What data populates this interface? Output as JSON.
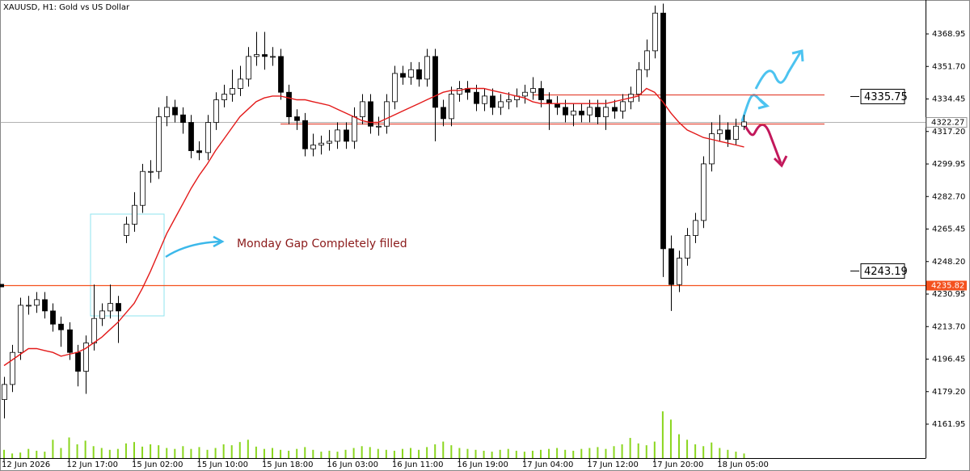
{
  "chart_data": {
    "type": "candlestick",
    "title": "XAUUSD, H1:  Gold vs US Dollar",
    "categories": [
      "12 Jun 2026",
      null,
      null,
      null,
      null,
      null,
      null,
      null,
      "12 Jun 17:00",
      null,
      null,
      null,
      null,
      null,
      null,
      null,
      "15 Jun 02:00",
      null,
      null,
      null,
      null,
      null,
      null,
      null,
      "15 Jun 10:00",
      null,
      null,
      null,
      null,
      null,
      null,
      null,
      "15 Jun 18:00",
      null,
      null,
      null,
      null,
      null,
      null,
      null,
      "16 Jun 03:00",
      null,
      null,
      null,
      null,
      null,
      null,
      null,
      "16 Jun 11:00",
      null,
      null,
      null,
      null,
      null,
      null,
      null,
      "16 Jun 19:00",
      null,
      null,
      null,
      null,
      null,
      null,
      null,
      "17 Jun 04:00",
      null,
      null,
      null,
      null,
      null,
      null,
      null,
      "17 Jun 12:00",
      null,
      null,
      null,
      null,
      null,
      null,
      null,
      "17 Jun 20:00",
      null,
      null,
      null,
      null,
      null,
      null,
      null,
      "18 Jun 05:00",
      null,
      null,
      null
    ],
    "open": [
      4175,
      4183,
      4200,
      4225,
      4225,
      4228,
      4222,
      4215,
      4212,
      4200,
      4190,
      4205,
      4218,
      4222,
      4226,
      4262,
      4268,
      4278,
      4296,
      4296,
      4325,
      4330,
      4326,
      4322,
      4307,
      4306,
      4322,
      4334,
      4337,
      4340,
      4345,
      4357,
      4358,
      4357,
      4357,
      4338,
      4325,
      4323,
      4308,
      4310,
      4311,
      4312,
      4318,
      4312,
      4325,
      4333,
      4320,
      4320,
      4333,
      4348,
      4346,
      4350,
      4345,
      4357,
      4330,
      4324,
      4337,
      4340,
      4338,
      4332,
      4336,
      4330,
      4333,
      4334,
      4336,
      4338,
      4340,
      4334,
      4332,
      4330,
      4326,
      4328,
      4326,
      4330,
      4325,
      4330,
      4328,
      4333,
      4337,
      4350,
      4360,
      4380,
      4255,
      4236,
      4250,
      4262,
      4270,
      4300,
      4316,
      4318,
      4313,
      4320
    ],
    "high": [
      4187,
      4204,
      4229,
      4230,
      4232,
      4232,
      4226,
      4219,
      4216,
      4204,
      4209,
      4236,
      4226,
      4236,
      4230,
      4272,
      4285,
      4300,
      4302,
      4330,
      4336,
      4334,
      4330,
      4326,
      4312,
      4326,
      4338,
      4342,
      4350,
      4352,
      4362,
      4370,
      4370,
      4362,
      4361,
      4342,
      4329,
      4327,
      4316,
      4315,
      4318,
      4322,
      4322,
      4330,
      4337,
      4337,
      4325,
      4337,
      4352,
      4352,
      4354,
      4354,
      4361,
      4361,
      4334,
      4341,
      4344,
      4344,
      4342,
      4340,
      4340,
      4337,
      4338,
      4340,
      4342,
      4346,
      4344,
      4338,
      4336,
      4334,
      4332,
      4332,
      4334,
      4334,
      4334,
      4334,
      4337,
      4341,
      4354,
      4366,
      4384,
      4385,
      4262,
      4254,
      4266,
      4274,
      4304,
      4322,
      4326,
      4322,
      4324,
      4326
    ],
    "low": [
      4165,
      4179,
      4196,
      4220,
      4221,
      4218,
      4211,
      4203,
      4196,
      4182,
      4178,
      4201,
      4214,
      4218,
      4205,
      4258,
      4264,
      4274,
      4290,
      4292,
      4320,
      4322,
      4316,
      4303,
      4302,
      4302,
      4318,
      4330,
      4333,
      4336,
      4341,
      4352,
      4350,
      4352,
      4334,
      4321,
      4318,
      4304,
      4304,
      4305,
      4307,
      4308,
      4308,
      4308,
      4321,
      4316,
      4315,
      4316,
      4329,
      4342,
      4342,
      4341,
      4341,
      4312,
      4320,
      4320,
      4333,
      4334,
      4328,
      4328,
      4326,
      4326,
      4329,
      4330,
      4332,
      4334,
      4330,
      4318,
      4326,
      4322,
      4320,
      4322,
      4322,
      4321,
      4318,
      4324,
      4324,
      4329,
      4333,
      4346,
      4356,
      4240,
      4222,
      4232,
      4246,
      4258,
      4266,
      4296,
      4312,
      4309,
      4310,
      4318
    ],
    "close": [
      4183,
      4200,
      4225,
      4225,
      4228,
      4222,
      4215,
      4212,
      4200,
      4190,
      4205,
      4218,
      4222,
      4226,
      4222,
      4268,
      4278,
      4296,
      4296,
      4325,
      4330,
      4326,
      4322,
      4307,
      4306,
      4322,
      4334,
      4337,
      4340,
      4345,
      4357,
      4358,
      4357,
      4357,
      4338,
      4325,
      4323,
      4308,
      4310,
      4311,
      4312,
      4318,
      4312,
      4325,
      4333,
      4320,
      4320,
      4333,
      4348,
      4346,
      4350,
      4345,
      4357,
      4330,
      4324,
      4337,
      4340,
      4338,
      4332,
      4336,
      4330,
      4333,
      4334,
      4336,
      4338,
      4340,
      4334,
      4332,
      4330,
      4326,
      4328,
      4326,
      4330,
      4325,
      4330,
      4328,
      4333,
      4337,
      4350,
      4360,
      4380,
      4255,
      4236,
      4250,
      4262,
      4270,
      4300,
      4316,
      4318,
      4313,
      4320,
      4322.27
    ],
    "up_color": "#ffffff",
    "down_color": "#000000",
    "ma": {
      "color": "#e31a1a",
      "values": [
        4193,
        4196,
        4199,
        4202,
        4202,
        4201,
        4200,
        4198,
        4199,
        4200,
        4202,
        4205,
        4208,
        4212,
        4216,
        4221,
        4226,
        4234,
        4243,
        4253,
        4263,
        4271,
        4279,
        4287,
        4294,
        4300,
        4307,
        4313,
        4319,
        4325,
        4329,
        4333,
        4335,
        4336,
        4336,
        4335,
        4334,
        4334,
        4333,
        4332,
        4331,
        4329,
        4327,
        4325,
        4323,
        4322,
        4322,
        4324,
        4326,
        4328,
        4330,
        4332,
        4334,
        4336,
        4338,
        4339,
        4339,
        4340,
        4340,
        4340,
        4339,
        4338,
        4337,
        4336,
        4335,
        4333,
        4332,
        4332,
        4332,
        4332,
        4332,
        4332,
        4332,
        4332,
        4332,
        4333,
        4334,
        4335,
        4336,
        4340,
        4338,
        4333,
        4327,
        4322,
        4318,
        4316,
        4314,
        4313,
        4312,
        4311,
        4310,
        4309
      ]
    },
    "volume": {
      "color": "#8ad61e",
      "axis": "y2",
      "values": [
        18,
        10,
        12,
        20,
        16,
        14,
        40,
        22,
        45,
        30,
        38,
        26,
        22,
        18,
        20,
        32,
        35,
        25,
        30,
        28,
        22,
        20,
        26,
        20,
        24,
        18,
        22,
        30,
        28,
        35,
        40,
        25,
        20,
        22,
        18,
        16,
        20,
        24,
        18,
        14,
        16,
        14,
        18,
        22,
        26,
        24,
        20,
        18,
        16,
        20,
        22,
        18,
        24,
        30,
        36,
        28,
        22,
        20,
        18,
        16,
        14,
        18,
        20,
        16,
        14,
        16,
        18,
        20,
        22,
        18,
        16,
        20,
        22,
        24,
        20,
        26,
        30,
        44,
        32,
        28,
        36,
        102,
        84,
        52,
        40,
        30,
        26,
        34,
        22,
        18,
        14,
        10
      ]
    },
    "ylim": [
      4143.95,
      4386.95
    ],
    "yticks": [
      4368.95,
      {
        "value": 4351.7,
        "label": "4351.70"
      },
      4334.45,
      {
        "value": 4317.2,
        "label": "4317.20"
      },
      4299.95,
      {
        "value": 4282.7,
        "label": "4282.70"
      },
      4265.45,
      {
        "value": 4248.2,
        "label": "4248.20"
      },
      4230.95,
      {
        "value": 4213.7,
        "label": "4213.70"
      },
      4196.45,
      {
        "value": 4179.2,
        "label": "4179.20"
      },
      4161.95
    ],
    "y2lim": [
      0,
      1000
    ],
    "levels": [
      {
        "value": 4336.6,
        "start": 65,
        "color": "#e34a3a"
      },
      {
        "value": 4321.2,
        "start": 34,
        "color": "#e34a3a"
      }
    ],
    "current_price": 4322.27,
    "alert_line": {
      "value": 4235.82,
      "color": "#f4511e"
    },
    "marker_labels": [
      4335.75,
      4243.19
    ],
    "annotation": "Monday Gap Completely filled"
  }
}
